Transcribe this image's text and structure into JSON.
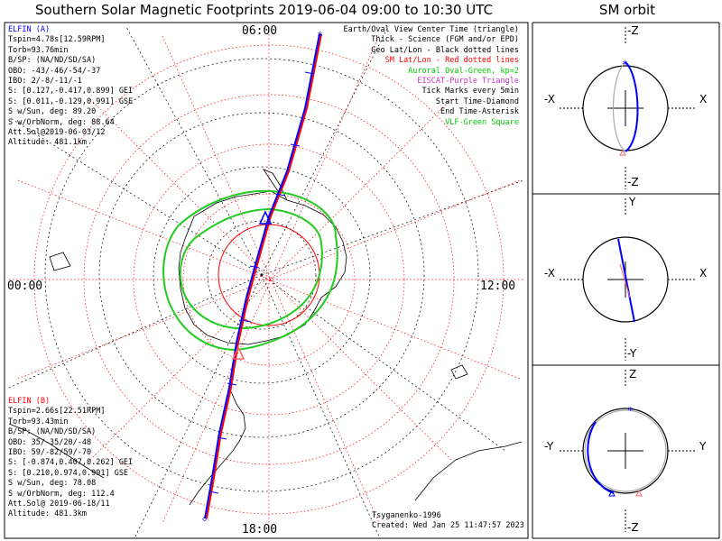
{
  "title": "Southern Solar Magnetic Footprints 2019-06-04 09:00 to 10:30 UTC",
  "orbit_title": "SM orbit",
  "clock_labels": {
    "top": "06:00",
    "left": "00:00",
    "right": "12:00",
    "bottom": "18:00"
  },
  "elfin_a": {
    "name": "ELFIN (A)",
    "color": "#0000ff",
    "lines": [
      "Tspin=4.78s[12.59RPM]",
      "Torb=93.76min",
      "B/SP: (NA/ND/SD/SA)",
      "OBO: -43/-46/-54/-37",
      "IBO: 2/-8/-11/-1",
      "S: [0.127,-0.417,0.899] GEI",
      "S: [0.011,-0.129,0.991] GSE",
      "S w/Sun, deg: 89.20",
      "S w/OrbNorm, deg: 88.64",
      "Att.Sol@2019-06-03/12",
      "Altitude: 481.1km"
    ]
  },
  "elfin_b": {
    "name": "ELFIN (B)",
    "color": "#ff0000",
    "lines": [
      "Tspin=2.66s[22.51RPM]",
      "Torb=93.43min",
      "B/SP: (NA/ND/SD/SA)",
      "OBO: 35/-35/20/-48",
      "IBO: 59/-82/59/-70",
      "S: [-0.874,0.407,0.262] GEI",
      "S: [0.210,0.974,0.991] GSE",
      "S w/Sun, deg: 78.08",
      "S w/OrbNorm, deg: 112.4",
      "Att.Sol@ 2019-06-18/11",
      "Altitude: 481.3km"
    ]
  },
  "legend": [
    {
      "text": "Earth/Oval View Center Time (triangle)",
      "color": "#000000"
    },
    {
      "text": "Thick - Science (FGM and/or EPD)",
      "color": "#000000"
    },
    {
      "text": "Geo Lat/Lon - Black dotted lines",
      "color": "#000000"
    },
    {
      "text": "SM Lat/Lon - Red dotted lines",
      "color": "#ff0000"
    },
    {
      "text": "Auroral Oval-Green, kp=2",
      "color": "#00cc00"
    },
    {
      "text": "EISCAT-Purple Triangle",
      "color": "#cc33cc"
    },
    {
      "text": "Tick Marks every 5min",
      "color": "#000000"
    },
    {
      "text": "Start Time-Diamond",
      "color": "#000000"
    },
    {
      "text": "End Time-Asterisk",
      "color": "#000000"
    },
    {
      "text": "VLF-Green Square",
      "color": "#00cc00"
    }
  ],
  "credits": {
    "model": "Tsyganenko-1996",
    "created": "Created: Wed Jan 25 11:47:57 2023"
  },
  "orbit_panels": [
    {
      "top": "-Z",
      "left": "-X",
      "right": "X",
      "bottom": "-Z"
    },
    {
      "top": "Y",
      "left": "-X",
      "right": "X",
      "bottom": "-Y"
    },
    {
      "top": "Z",
      "left": "-Y",
      "right": "Y",
      "bottom": "-Z"
    }
  ],
  "colors": {
    "elfin_a": "#0000ff",
    "elfin_b": "#ff0000",
    "auroral_oval": "#22cc22",
    "sm_grid": "#ff0000",
    "geo_grid": "#000000"
  }
}
